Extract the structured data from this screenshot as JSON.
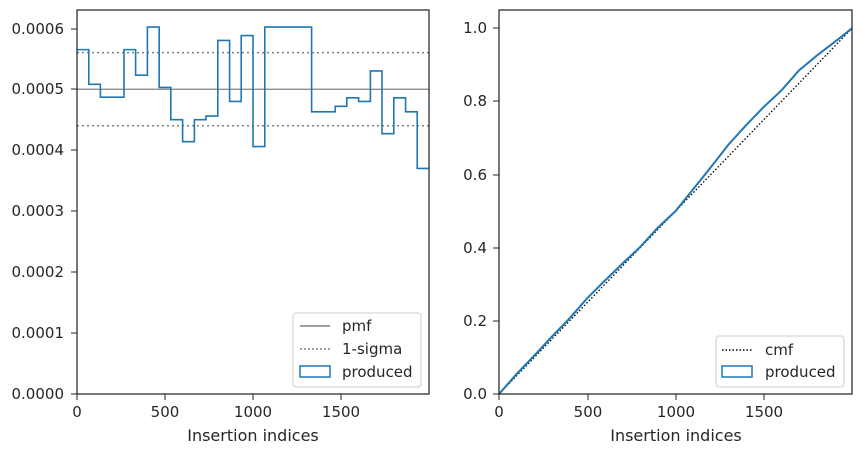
{
  "chart_data": [
    {
      "type": "line",
      "panel": "left",
      "xlabel": "Insertion indices",
      "ylabel": "",
      "xlim": [
        0,
        2000
      ],
      "ylim": [
        0,
        0.00063
      ],
      "xticks": [
        0,
        500,
        1000,
        1500
      ],
      "xtick_labels": [
        "0",
        "500",
        "1000",
        "1500"
      ],
      "yticks": [
        0,
        0.0001,
        0.0002,
        0.0003,
        0.0004,
        0.0005,
        0.0006
      ],
      "ytick_labels": [
        "0.0000",
        "0.0001",
        "0.0002",
        "0.0003",
        "0.0004",
        "0.0005",
        "0.0006"
      ],
      "grid": false,
      "legend_position": "lower-right",
      "series": [
        {
          "name": "pmf",
          "style": "solid",
          "color": "#808080",
          "y": 0.0005
        },
        {
          "name": "1-sigma",
          "style": "dotted",
          "color": "#808080",
          "y_values": [
            0.00044,
            0.00056
          ]
        },
        {
          "name": "produced",
          "style": "step",
          "color": "#1f77b4",
          "bin_edges": [
            0,
            67,
            133,
            267,
            333,
            400,
            467,
            533,
            600,
            667,
            733,
            800,
            867,
            933,
            1000,
            1067,
            1133,
            1200,
            1267,
            1333,
            1400,
            1467,
            1533,
            1600,
            1667,
            1733,
            1800,
            1867,
            1933,
            2000
          ],
          "values": [
            0.000565,
            0.000508,
            0.000487,
            0.000565,
            0.000523,
            0.000602,
            0.000503,
            0.00045,
            0.000414,
            0.00045,
            0.000456,
            0.00058,
            0.00048,
            0.000588,
            0.000406,
            0.000602,
            0.000602,
            0.000602,
            0.000602,
            0.000463,
            0.000463,
            0.000472,
            0.000486,
            0.00048,
            0.00053,
            0.000427,
            0.000486,
            0.000463,
            0.00037
          ]
        }
      ]
    },
    {
      "type": "line",
      "panel": "right",
      "xlabel": "Insertion indices",
      "ylabel": "",
      "xlim": [
        0,
        2000
      ],
      "ylim": [
        0,
        1.05
      ],
      "xticks": [
        0,
        500,
        1000,
        1500
      ],
      "xtick_labels": [
        "0",
        "500",
        "1000",
        "1500"
      ],
      "yticks": [
        0,
        0.2,
        0.4,
        0.6,
        0.8,
        1.0
      ],
      "ytick_labels": [
        "0.0",
        "0.2",
        "0.4",
        "0.6",
        "0.8",
        "1.0"
      ],
      "grid": false,
      "legend_position": "lower-right",
      "series": [
        {
          "name": "cmf",
          "style": "dotted",
          "color": "#000000",
          "x": [
            0,
            2000
          ],
          "y": [
            0,
            1.0
          ]
        },
        {
          "name": "produced",
          "style": "line",
          "color": "#1f77b4",
          "x": [
            0,
            100,
            200,
            300,
            400,
            500,
            600,
            700,
            800,
            900,
            1000,
            1100,
            1200,
            1300,
            1400,
            1500,
            1600,
            1700,
            1800,
            1900,
            2000
          ],
          "y": [
            0,
            0.055,
            0.105,
            0.157,
            0.207,
            0.262,
            0.31,
            0.357,
            0.402,
            0.455,
            0.5,
            0.56,
            0.62,
            0.682,
            0.735,
            0.785,
            0.83,
            0.885,
            0.925,
            0.962,
            1.0
          ]
        }
      ]
    }
  ]
}
